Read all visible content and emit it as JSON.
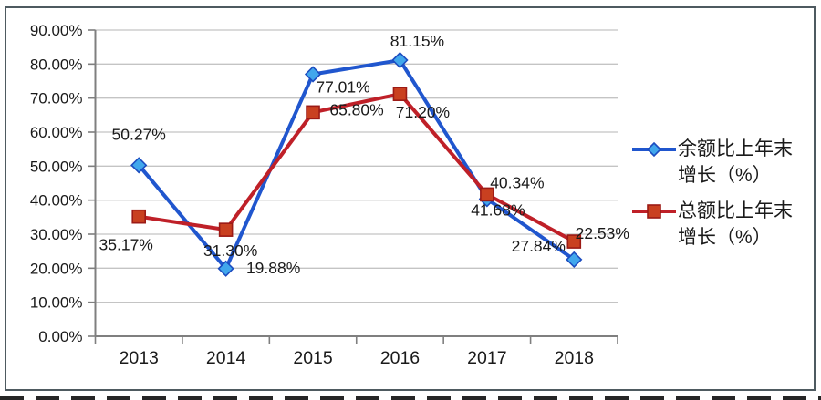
{
  "chart_data": {
    "type": "line",
    "title": "",
    "categories": [
      "2013",
      "2014",
      "2015",
      "2016",
      "2017",
      "2018"
    ],
    "series": [
      {
        "name": "余额比上年末增长（%）",
        "legend_lines": [
          "余额比上年末",
          "增长（%）"
        ],
        "values": [
          50.27,
          19.88,
          77.01,
          81.15,
          40.34,
          22.53
        ],
        "data_labels": [
          "50.27%",
          "19.88%",
          "77.01%",
          "81.15%",
          "40.34%",
          "22.53%"
        ],
        "color": "#2056CE",
        "marker": "diamond",
        "marker_fill": "#41A7EC",
        "marker_stroke": "#1C4CC0",
        "label_offsets": [
          [
            0,
            -34
          ],
          [
            52,
            -1
          ],
          [
            33,
            14
          ],
          [
            19,
            -21
          ],
          [
            33,
            -18
          ],
          [
            31,
            -29
          ]
        ]
      },
      {
        "name": "总额比上年末增长（%）",
        "legend_lines": [
          "总额比上年末",
          "增长（%）"
        ],
        "values": [
          35.17,
          31.3,
          65.8,
          71.2,
          41.68,
          27.84
        ],
        "data_labels": [
          "35.17%",
          "31.30%",
          "65.80%",
          "71.20%",
          "41.68%",
          "27.84%"
        ],
        "color": "#BF2028",
        "marker": "square",
        "marker_fill": "#C94020",
        "marker_stroke": "#9C1A15",
        "label_offsets": [
          [
            -14,
            31
          ],
          [
            5,
            23
          ],
          [
            48,
            -3
          ],
          [
            25,
            20
          ],
          [
            12,
            17
          ],
          [
            -39,
            5
          ]
        ]
      }
    ],
    "ylim": [
      0,
      90
    ],
    "ytick_labels": [
      "0.00%",
      "10.00%",
      "20.00%",
      "30.00%",
      "40.00%",
      "50.00%",
      "60.00%",
      "70.00%",
      "80.00%",
      "90.00%"
    ],
    "xlabel": "",
    "ylabel": "",
    "grid": true,
    "legend_position": "right",
    "styles": {
      "grid_color": "#c4c4c4",
      "axis_color": "#7f7f7f",
      "text_color": "#1a1a1a",
      "line_width": 4
    }
  }
}
